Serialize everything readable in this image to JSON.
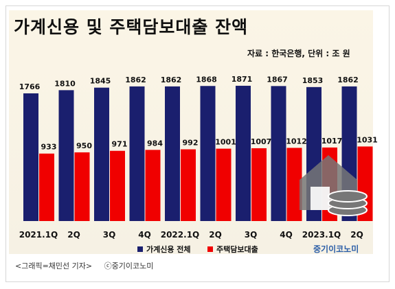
{
  "title": "가계신용 및 주택담보대출 잔액",
  "source": "자료 : 한국은행, 단위 : 조 원",
  "brand": "중기이코노미",
  "caption": {
    "credit": "<그래픽=채민선 기자>",
    "copyright": "ⓒ중기이코노미"
  },
  "colors": {
    "household": "#1a1f6e",
    "mortgage": "#f00000",
    "brand": "#2b5ea7",
    "house_icon": "#777777"
  },
  "icons": [
    "house-coins-icon"
  ],
  "chart_data": {
    "type": "bar",
    "title": "가계신용 및 주택담보대출 잔액",
    "categories": [
      "2021.1Q",
      "2Q",
      "3Q",
      "4Q",
      "2022.1Q",
      "2Q",
      "3Q",
      "4Q",
      "2023.1Q",
      "2Q"
    ],
    "series": [
      {
        "name": "가계신용 전체",
        "values": [
          1766,
          1810,
          1845,
          1862,
          1862,
          1868,
          1871,
          1867,
          1853,
          1862
        ]
      },
      {
        "name": "주택담보대출",
        "values": [
          933,
          950,
          971,
          984,
          992,
          1001,
          1007,
          1012,
          1017,
          1031
        ]
      }
    ],
    "legend_position": "bottom-center",
    "grid": false,
    "ylim": [
      0,
      2000
    ]
  }
}
